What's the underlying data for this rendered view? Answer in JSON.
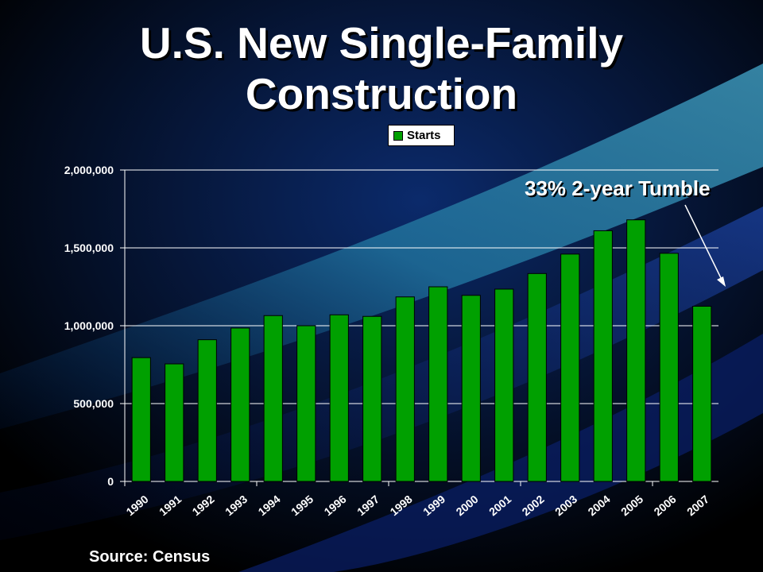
{
  "title_line1": "U.S. New Single-Family",
  "title_line2": "Construction",
  "source": "Source: Census",
  "annotation": "33% 2-year Tumble",
  "colors": {
    "bar": "#00a000",
    "background": "#000000",
    "text": "#ffffff"
  },
  "chart_data": {
    "type": "bar",
    "categories": [
      "1990",
      "1991",
      "1992",
      "1993",
      "1994",
      "1995",
      "1996",
      "1997",
      "1998",
      "1999",
      "2000",
      "2001",
      "2002",
      "2003",
      "2004",
      "2005",
      "2006",
      "2007"
    ],
    "series": [
      {
        "name": "Starts",
        "values": [
          795000,
          755000,
          910000,
          985000,
          1065000,
          1000000,
          1070000,
          1060000,
          1185000,
          1250000,
          1195000,
          1235000,
          1335000,
          1460000,
          1610000,
          1680000,
          1465000,
          1125000
        ]
      }
    ],
    "ylim": [
      0,
      2000000
    ],
    "yticks": [
      0,
      500000,
      1000000,
      1500000,
      2000000
    ],
    "ytick_labels": [
      "0",
      "500,000",
      "1,000,000",
      "1,500,000",
      "2,000,000"
    ],
    "grid": true,
    "legend": "top-center"
  }
}
